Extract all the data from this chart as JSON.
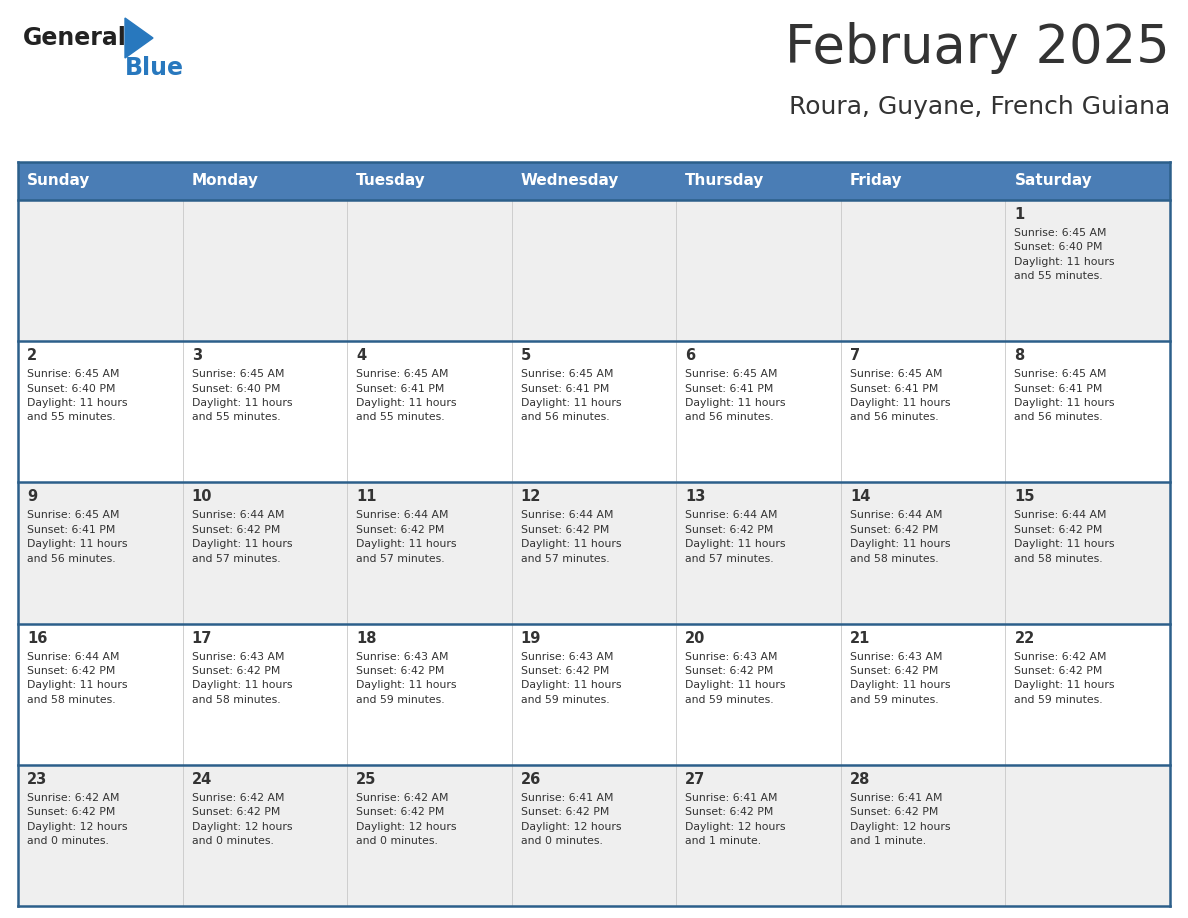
{
  "title": "February 2025",
  "subtitle": "Roura, Guyane, French Guiana",
  "header_color": "#4a7db5",
  "header_text_color": "#ffffff",
  "weekdays": [
    "Sunday",
    "Monday",
    "Tuesday",
    "Wednesday",
    "Thursday",
    "Friday",
    "Saturday"
  ],
  "row_bg_odd": "#efefef",
  "row_bg_even": "#ffffff",
  "border_color": "#2c5f8a",
  "text_color": "#333333",
  "logo_general_color": "#222222",
  "logo_blue_color": "#2878be",
  "calendar": [
    [
      {
        "day": "",
        "info": ""
      },
      {
        "day": "",
        "info": ""
      },
      {
        "day": "",
        "info": ""
      },
      {
        "day": "",
        "info": ""
      },
      {
        "day": "",
        "info": ""
      },
      {
        "day": "",
        "info": ""
      },
      {
        "day": "1",
        "info": "Sunrise: 6:45 AM\nSunset: 6:40 PM\nDaylight: 11 hours\nand 55 minutes."
      }
    ],
    [
      {
        "day": "2",
        "info": "Sunrise: 6:45 AM\nSunset: 6:40 PM\nDaylight: 11 hours\nand 55 minutes."
      },
      {
        "day": "3",
        "info": "Sunrise: 6:45 AM\nSunset: 6:40 PM\nDaylight: 11 hours\nand 55 minutes."
      },
      {
        "day": "4",
        "info": "Sunrise: 6:45 AM\nSunset: 6:41 PM\nDaylight: 11 hours\nand 55 minutes."
      },
      {
        "day": "5",
        "info": "Sunrise: 6:45 AM\nSunset: 6:41 PM\nDaylight: 11 hours\nand 56 minutes."
      },
      {
        "day": "6",
        "info": "Sunrise: 6:45 AM\nSunset: 6:41 PM\nDaylight: 11 hours\nand 56 minutes."
      },
      {
        "day": "7",
        "info": "Sunrise: 6:45 AM\nSunset: 6:41 PM\nDaylight: 11 hours\nand 56 minutes."
      },
      {
        "day": "8",
        "info": "Sunrise: 6:45 AM\nSunset: 6:41 PM\nDaylight: 11 hours\nand 56 minutes."
      }
    ],
    [
      {
        "day": "9",
        "info": "Sunrise: 6:45 AM\nSunset: 6:41 PM\nDaylight: 11 hours\nand 56 minutes."
      },
      {
        "day": "10",
        "info": "Sunrise: 6:44 AM\nSunset: 6:42 PM\nDaylight: 11 hours\nand 57 minutes."
      },
      {
        "day": "11",
        "info": "Sunrise: 6:44 AM\nSunset: 6:42 PM\nDaylight: 11 hours\nand 57 minutes."
      },
      {
        "day": "12",
        "info": "Sunrise: 6:44 AM\nSunset: 6:42 PM\nDaylight: 11 hours\nand 57 minutes."
      },
      {
        "day": "13",
        "info": "Sunrise: 6:44 AM\nSunset: 6:42 PM\nDaylight: 11 hours\nand 57 minutes."
      },
      {
        "day": "14",
        "info": "Sunrise: 6:44 AM\nSunset: 6:42 PM\nDaylight: 11 hours\nand 58 minutes."
      },
      {
        "day": "15",
        "info": "Sunrise: 6:44 AM\nSunset: 6:42 PM\nDaylight: 11 hours\nand 58 minutes."
      }
    ],
    [
      {
        "day": "16",
        "info": "Sunrise: 6:44 AM\nSunset: 6:42 PM\nDaylight: 11 hours\nand 58 minutes."
      },
      {
        "day": "17",
        "info": "Sunrise: 6:43 AM\nSunset: 6:42 PM\nDaylight: 11 hours\nand 58 minutes."
      },
      {
        "day": "18",
        "info": "Sunrise: 6:43 AM\nSunset: 6:42 PM\nDaylight: 11 hours\nand 59 minutes."
      },
      {
        "day": "19",
        "info": "Sunrise: 6:43 AM\nSunset: 6:42 PM\nDaylight: 11 hours\nand 59 minutes."
      },
      {
        "day": "20",
        "info": "Sunrise: 6:43 AM\nSunset: 6:42 PM\nDaylight: 11 hours\nand 59 minutes."
      },
      {
        "day": "21",
        "info": "Sunrise: 6:43 AM\nSunset: 6:42 PM\nDaylight: 11 hours\nand 59 minutes."
      },
      {
        "day": "22",
        "info": "Sunrise: 6:42 AM\nSunset: 6:42 PM\nDaylight: 11 hours\nand 59 minutes."
      }
    ],
    [
      {
        "day": "23",
        "info": "Sunrise: 6:42 AM\nSunset: 6:42 PM\nDaylight: 12 hours\nand 0 minutes."
      },
      {
        "day": "24",
        "info": "Sunrise: 6:42 AM\nSunset: 6:42 PM\nDaylight: 12 hours\nand 0 minutes."
      },
      {
        "day": "25",
        "info": "Sunrise: 6:42 AM\nSunset: 6:42 PM\nDaylight: 12 hours\nand 0 minutes."
      },
      {
        "day": "26",
        "info": "Sunrise: 6:41 AM\nSunset: 6:42 PM\nDaylight: 12 hours\nand 0 minutes."
      },
      {
        "day": "27",
        "info": "Sunrise: 6:41 AM\nSunset: 6:42 PM\nDaylight: 12 hours\nand 1 minute."
      },
      {
        "day": "28",
        "info": "Sunrise: 6:41 AM\nSunset: 6:42 PM\nDaylight: 12 hours\nand 1 minute."
      },
      {
        "day": "",
        "info": ""
      }
    ]
  ],
  "fig_width": 11.88,
  "fig_height": 9.18,
  "dpi": 100
}
